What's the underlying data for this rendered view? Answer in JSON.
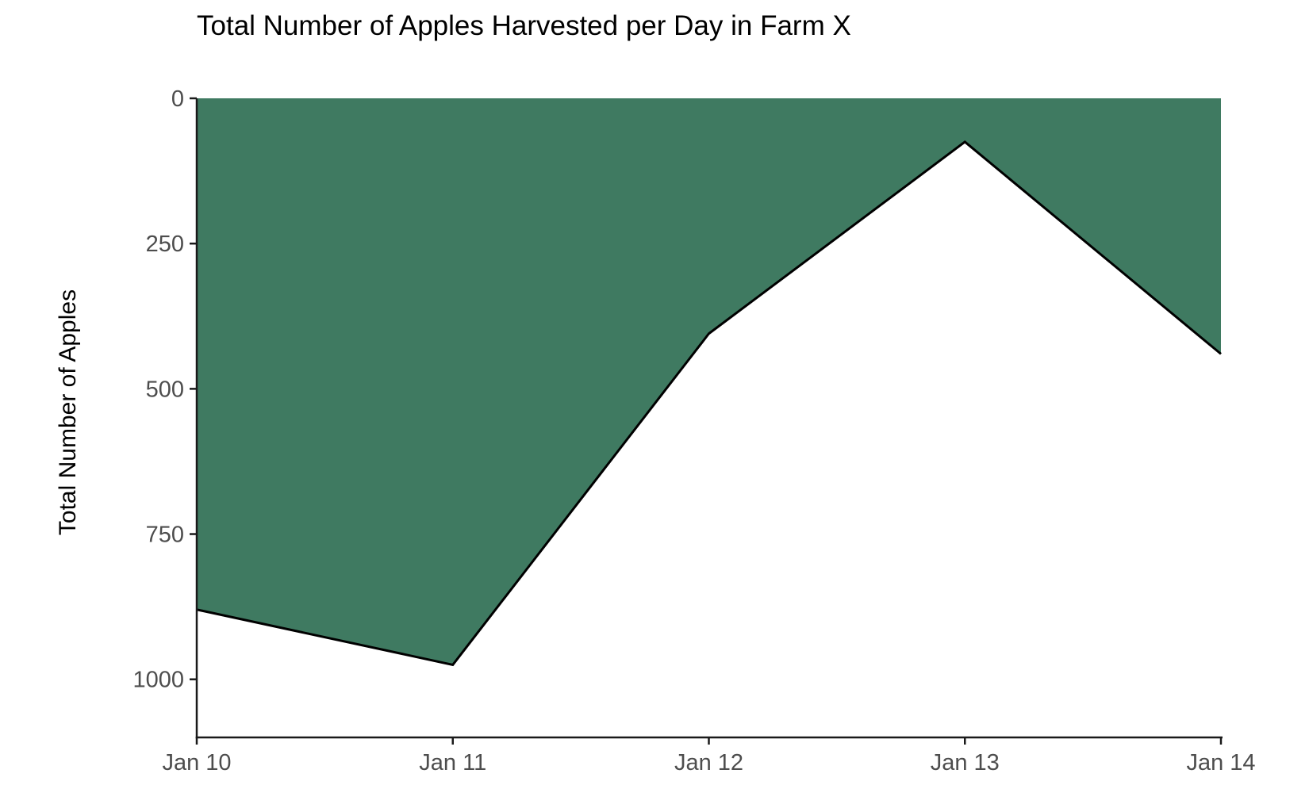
{
  "chart_data": {
    "type": "area",
    "title": "Total Number of Apples Harvested per Day in Farm X",
    "ylabel": "Total Number of Apples",
    "xlabel": "",
    "categories": [
      "Jan 10",
      "Jan 11",
      "Jan 12",
      "Jan 13",
      "Jan 14"
    ],
    "series": [
      {
        "name": "Total Number of Apples",
        "values": [
          880,
          975,
          405,
          75,
          440
        ]
      }
    ],
    "y_ticks": [
      0,
      250,
      500,
      750,
      1000
    ],
    "ylim": [
      0,
      1100
    ],
    "y_axis_reversed": true,
    "grid": false,
    "legend_position": "none",
    "colors": {
      "area_fill": "#3F7A61",
      "data_line": "#000000",
      "axis_line": "#1A1A1A",
      "tick_label": "#4D4D4D",
      "title_text": "#000000"
    }
  }
}
